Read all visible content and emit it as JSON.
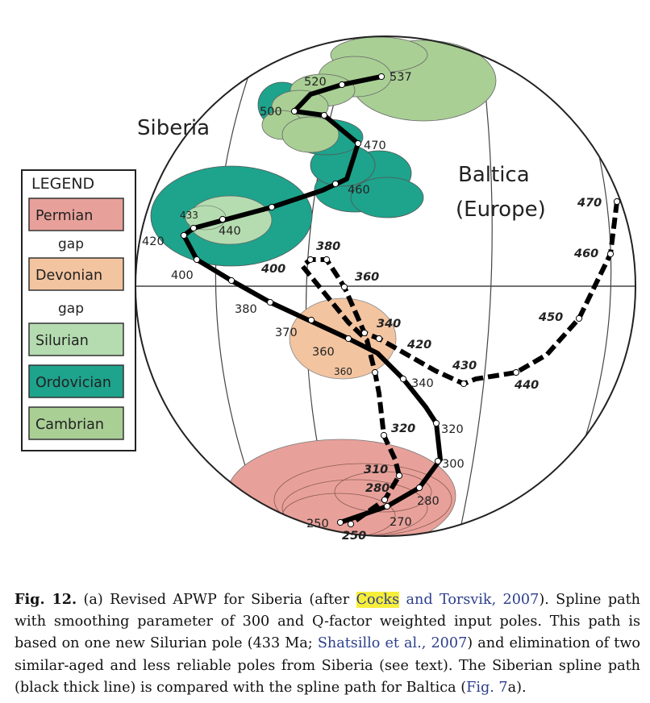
{
  "figure": {
    "siberia_label": "Siberia",
    "baltica_label_line1": "Baltica",
    "baltica_label_line2": "(Europe)",
    "legend": {
      "title": "LEGEND",
      "items": [
        {
          "label": "Permian",
          "color": "#e8a19a"
        },
        {
          "label": "Devonian",
          "color": "#f3c4a0"
        },
        {
          "label": "Silurian",
          "color": "#b5dcb0"
        },
        {
          "label": "Ordovician",
          "color": "#1ea38c"
        },
        {
          "label": "Cambrian",
          "color": "#a9cf95"
        }
      ],
      "gap_label": "gap"
    },
    "siberia_ages": [
      "537",
      "520",
      "500",
      "470",
      "460",
      "433",
      "440",
      "420",
      "400",
      "380",
      "370",
      "360",
      "360",
      "340",
      "320",
      "300",
      "280",
      "270",
      "250"
    ],
    "baltica_ages": [
      "470",
      "460",
      "450",
      "440",
      "430",
      "420",
      "400",
      "380",
      "360",
      "340",
      "320",
      "310",
      "280",
      "250"
    ]
  },
  "caption": {
    "fig_label": "Fig. 12.",
    "part1": " (a) Revised APWP for Siberia (after ",
    "ref1a": "Cocks",
    "ref1b": " and Torsvik, 2007",
    "part2": "). Spline path with smoothing parameter of 300 and Q-factor weighted input poles. This path is based on one new Silurian pole (433 Ma; ",
    "ref2": "Shatsillo et al., 2007",
    "part3": ") and elimination of two similar-aged and less reliable poles from Siberia (see text). The Siberian spline path (black thick line) is compared with the spline path for Baltica (",
    "ref3": "Fig. 7",
    "part4": "a)."
  }
}
